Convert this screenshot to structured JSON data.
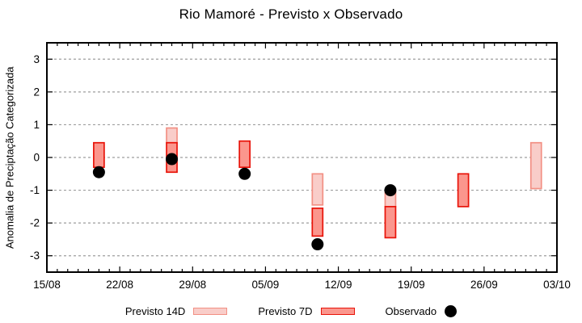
{
  "chart": {
    "title": "Rio Mamoré - Previsto x Observado",
    "ylabel": "Anomalia de Preciptação Categorizada",
    "legend": [
      {
        "label": "Previsto 14D",
        "swatch": "box",
        "fill": "#f9cdc9",
        "border": "#f29084"
      },
      {
        "label": "Previsto 7D",
        "swatch": "box",
        "fill": "#fb968d",
        "border": "#e81309"
      },
      {
        "label": "Observado",
        "swatch": "dot",
        "fill": "#000000",
        "border": "#000000"
      }
    ]
  },
  "chart_data": {
    "type": "bar",
    "subtype": "vertical range bars (forecast windows) + scatter (observed)",
    "title": "Rio Mamoré - Previsto x Observado",
    "xlabel": "",
    "ylabel": "Anomalia de Preciptação Categorizada",
    "x_ticks": [
      "15/08",
      "22/08",
      "29/08",
      "05/09",
      "12/09",
      "19/09",
      "26/09",
      "03/10"
    ],
    "x_minor_tick_interval_days": 1,
    "x_range_days": [
      0,
      49
    ],
    "y_ticks": [
      -3,
      -2,
      -1,
      0,
      1,
      2,
      3
    ],
    "ylim": [
      -3.5,
      3.5
    ],
    "grid": "horizontal dashed lines at integer y values",
    "legend_position": "below plot, centered",
    "colors": {
      "previsto14_fill": "#f9cdc9",
      "previsto14_border": "#f29084",
      "previsto7_fill": "#fb968d",
      "previsto7_border": "#e81309",
      "observado": "#000000",
      "grid": "#9e9e9e",
      "axis": "#000000"
    },
    "series": [
      {
        "name": "Previsto 14D",
        "type": "range-bar",
        "color_fill": "#f9cdc9",
        "color_border": "#f29084",
        "points": [
          {
            "date": "27/08",
            "day": 12,
            "high": 0.9,
            "low": 0.45
          },
          {
            "date": "10/09",
            "day": 26,
            "high": -0.5,
            "low": -1.45
          },
          {
            "date": "17/09",
            "day": 33,
            "high": -1.05,
            "low": -1.5
          },
          {
            "date": "01/10",
            "day": 47,
            "high": 0.45,
            "low": -0.95
          }
        ]
      },
      {
        "name": "Previsto 7D",
        "type": "range-bar",
        "color_fill": "#fb968d",
        "color_border": "#e81309",
        "points": [
          {
            "date": "20/08",
            "day": 5,
            "high": 0.45,
            "low": -0.3
          },
          {
            "date": "27/08",
            "day": 12,
            "high": 0.45,
            "low": -0.45
          },
          {
            "date": "03/09",
            "day": 19,
            "high": 0.5,
            "low": -0.3
          },
          {
            "date": "10/09",
            "day": 26,
            "high": -1.55,
            "low": -2.4
          },
          {
            "date": "17/09",
            "day": 33,
            "high": -1.5,
            "low": -2.45
          },
          {
            "date": "24/09",
            "day": 40,
            "high": -0.5,
            "low": -1.5
          }
        ]
      },
      {
        "name": "Observado",
        "type": "scatter",
        "color": "#000000",
        "points": [
          {
            "date": "20/08",
            "day": 5,
            "value": -0.45
          },
          {
            "date": "27/08",
            "day": 12,
            "value": -0.05
          },
          {
            "date": "03/09",
            "day": 19,
            "value": -0.5
          },
          {
            "date": "10/09",
            "day": 26,
            "value": -2.65
          },
          {
            "date": "17/09",
            "day": 33,
            "value": -1.0
          }
        ]
      }
    ]
  }
}
